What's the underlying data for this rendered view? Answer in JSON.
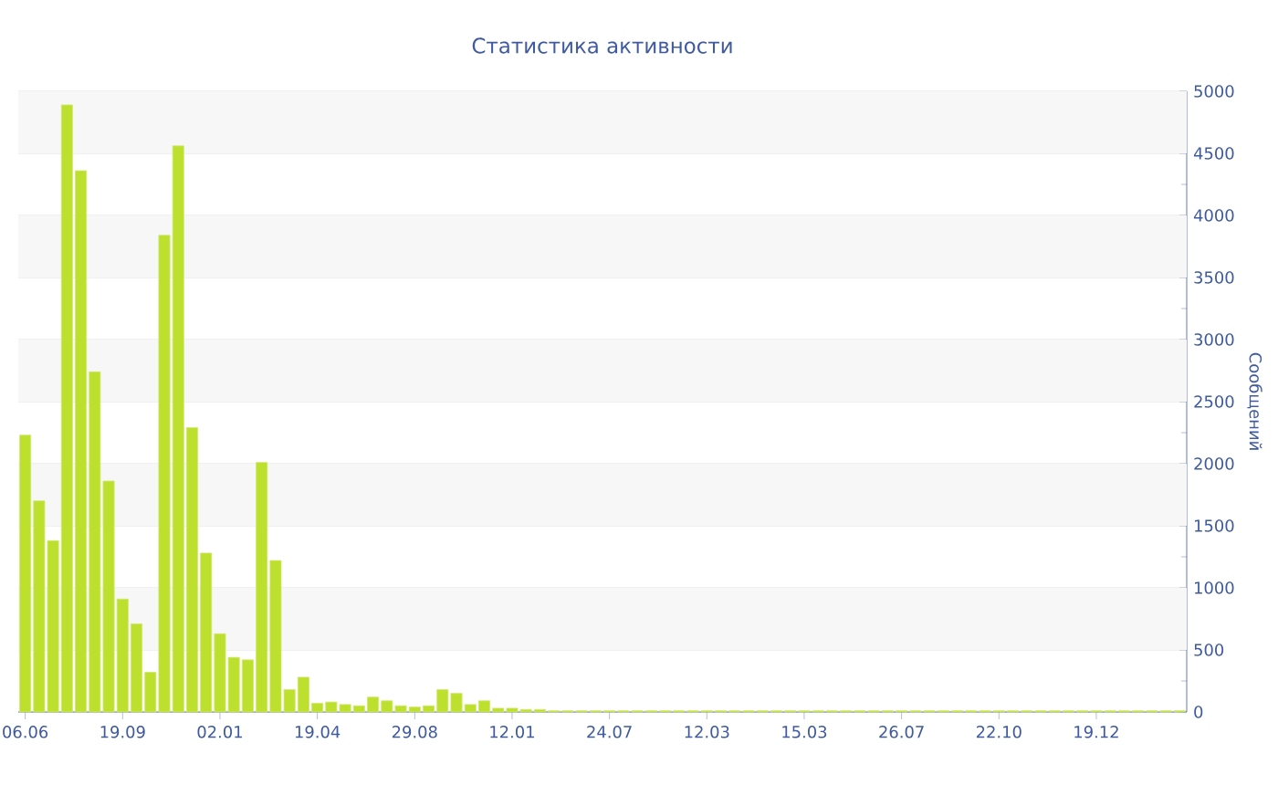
{
  "chart_data": {
    "type": "bar",
    "title": "Статистика активности",
    "ylabel": "Сообщений",
    "categories": [
      "06.06",
      null,
      null,
      null,
      null,
      null,
      null,
      "19.09",
      null,
      null,
      null,
      null,
      null,
      null,
      "02.01",
      null,
      null,
      null,
      null,
      null,
      null,
      "19.04",
      null,
      null,
      null,
      null,
      null,
      null,
      "29.08",
      null,
      null,
      null,
      null,
      null,
      null,
      "12.01",
      null,
      null,
      null,
      null,
      null,
      null,
      "24.07",
      null,
      null,
      null,
      null,
      null,
      null,
      "12.03",
      null,
      null,
      null,
      null,
      null,
      null,
      "15.03",
      null,
      null,
      null,
      null,
      null,
      null,
      "26.07",
      null,
      null,
      null,
      null,
      null,
      null,
      "22.10",
      null,
      null,
      null,
      null,
      null,
      null,
      "19.12",
      null,
      null,
      null,
      null,
      null,
      null
    ],
    "values": [
      2230,
      1700,
      1380,
      4890,
      4360,
      2740,
      1860,
      910,
      710,
      320,
      3840,
      4560,
      2290,
      1280,
      630,
      440,
      420,
      2010,
      1220,
      180,
      280,
      70,
      80,
      60,
      50,
      120,
      90,
      50,
      40,
      50,
      180,
      150,
      60,
      90,
      30,
      30,
      20,
      20,
      10,
      10,
      10,
      10,
      10,
      10,
      10,
      10,
      10,
      10,
      10,
      10,
      10,
      10,
      10,
      10,
      10,
      10,
      10,
      10,
      10,
      10,
      10,
      10,
      10,
      10,
      10,
      10,
      10,
      10,
      10,
      10,
      10,
      10,
      10,
      10,
      10,
      10,
      10,
      10,
      10,
      10,
      10,
      10,
      10,
      10
    ],
    "color": "#bde02f",
    "ylim": [
      0,
      5000
    ],
    "yticks": [
      0,
      500,
      1000,
      1500,
      2000,
      2500,
      3000,
      3500,
      4000,
      4500,
      5000
    ],
    "grid": "y"
  }
}
